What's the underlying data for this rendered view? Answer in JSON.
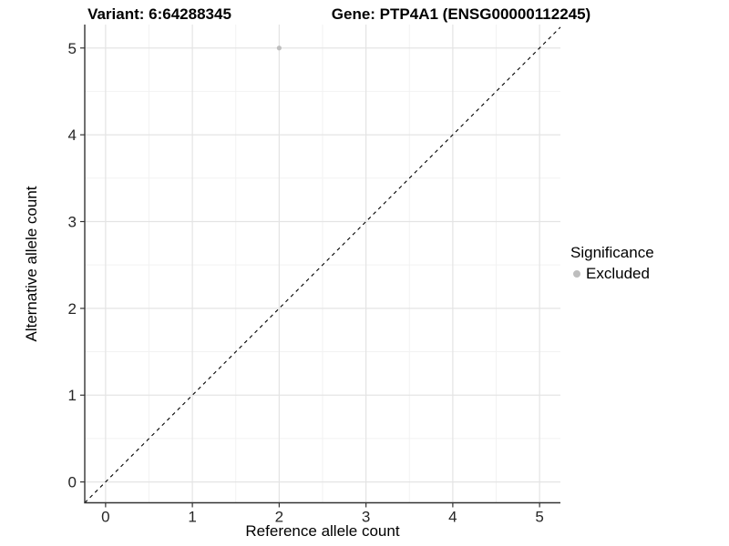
{
  "chart_data": {
    "type": "scatter",
    "titles": [
      "Variant: 6:64288345",
      "Gene: PTP4A1 (ENSG00000112245)"
    ],
    "xlabel": "Reference allele count",
    "ylabel": "Alternative allele count",
    "xlim": [
      -0.24,
      5.24
    ],
    "ylim": [
      -0.24,
      5.27
    ],
    "x_ticks": [
      0,
      1,
      2,
      3,
      4,
      5
    ],
    "y_ticks": [
      0,
      1,
      2,
      3,
      4,
      5
    ],
    "x_minor": [
      0.5,
      1.5,
      2.5,
      3.5,
      4.5
    ],
    "y_minor": [
      0.5,
      1.5,
      2.5,
      3.5,
      4.5
    ],
    "grid": true,
    "points": [
      {
        "x": 2,
        "y": 5,
        "series": "Excluded"
      }
    ],
    "reference_line": {
      "kind": "identity",
      "slope": 1,
      "intercept": 0,
      "style": "dashed",
      "color": "#000000"
    },
    "legend": {
      "title": "Significance",
      "position": "right",
      "entries": [
        {
          "label": "Excluded",
          "color": "#bebebe",
          "marker": "circle"
        }
      ]
    },
    "colors": {
      "background": "#ffffff",
      "grid_major": "#e4e4e4",
      "grid_minor": "#f2f2f2",
      "axis_line": "#333333",
      "tick_text": "#262626",
      "point": "#bebebe"
    }
  }
}
